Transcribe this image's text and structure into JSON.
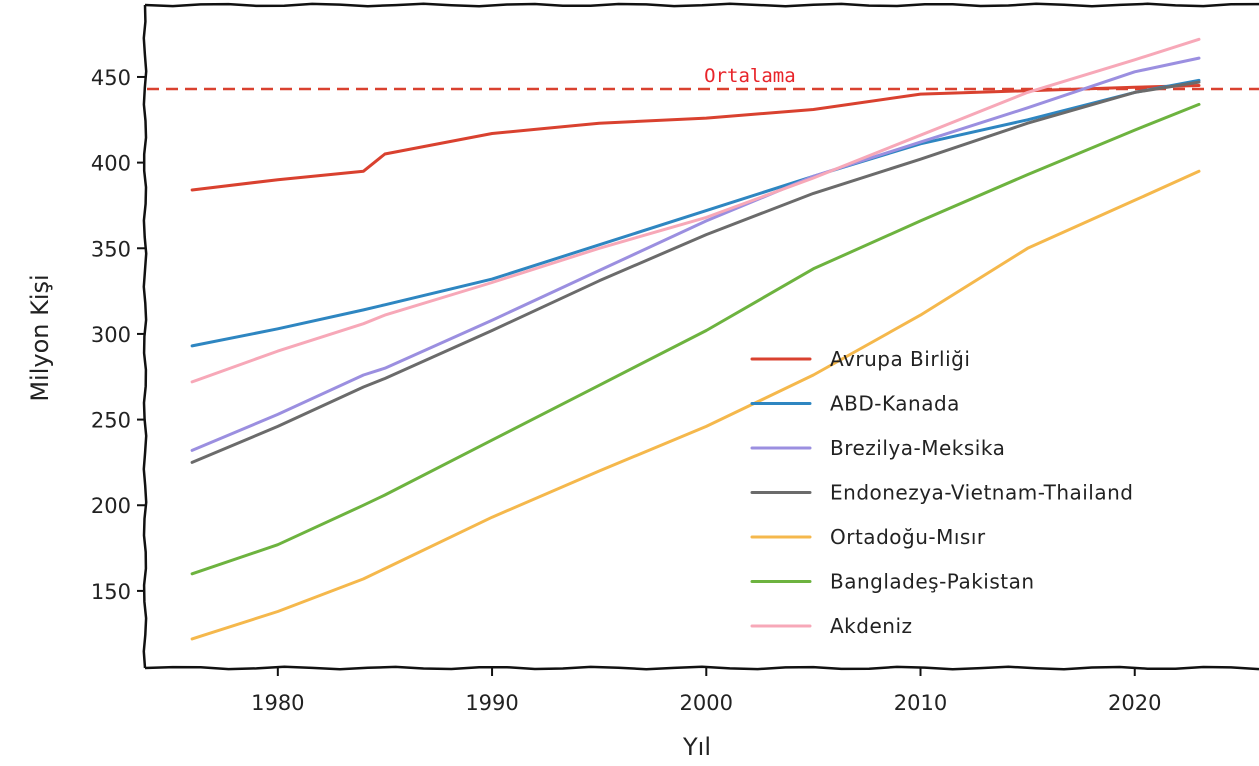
{
  "chart_data": {
    "type": "line",
    "title": "",
    "xlabel": "Yıl",
    "ylabel": "Milyon Kişi",
    "xlim": [
      1973.8,
      2025.8
    ],
    "ylim": [
      105,
      492
    ],
    "xticks": [
      1980,
      1990,
      2000,
      2010,
      2020
    ],
    "yticks": [
      150,
      200,
      250,
      300,
      350,
      400,
      450
    ],
    "grid": false,
    "legend_position": "lower-right",
    "reference_line": {
      "label": "Ortalama",
      "y": 443,
      "color": "#d9412f"
    },
    "x": [
      1976,
      1980,
      1984,
      1985,
      1990,
      1995,
      2000,
      2005,
      2010,
      2015,
      2020,
      2023
    ],
    "series": [
      {
        "name": "Avrupa Birliği",
        "color": "#d9412f",
        "values": [
          384,
          390,
          395,
          405,
          417,
          423,
          426,
          431,
          440,
          442,
          444,
          445
        ]
      },
      {
        "name": "ABD-Kanada",
        "color": "#2e86c1",
        "values": [
          293,
          303,
          314,
          317,
          332,
          352,
          372,
          392,
          411,
          425,
          441,
          448
        ]
      },
      {
        "name": "Brezilya-Meksika",
        "color": "#9b8fe0",
        "values": [
          232,
          253,
          276,
          280,
          308,
          337,
          366,
          392,
          412,
          432,
          453,
          461
        ]
      },
      {
        "name": "Endonezya-Vietnam-Thailand",
        "color": "#6b6b6b",
        "values": [
          225,
          246,
          269,
          274,
          302,
          331,
          358,
          382,
          402,
          423,
          441,
          447
        ]
      },
      {
        "name": "Ortadoğu-Mısır",
        "color": "#f5b84c",
        "values": [
          122,
          138,
          157,
          163,
          193,
          220,
          246,
          276,
          311,
          350,
          378,
          395
        ]
      },
      {
        "name": "Bangladeş-Pakistan",
        "color": "#6db33f",
        "values": [
          160,
          177,
          200,
          206,
          238,
          270,
          302,
          338,
          366,
          393,
          419,
          434
        ]
      },
      {
        "name": "Akdeniz",
        "color": "#f7a8b8",
        "values": [
          272,
          290,
          306,
          311,
          330,
          350,
          368,
          391,
          416,
          441,
          460,
          472
        ]
      }
    ]
  }
}
